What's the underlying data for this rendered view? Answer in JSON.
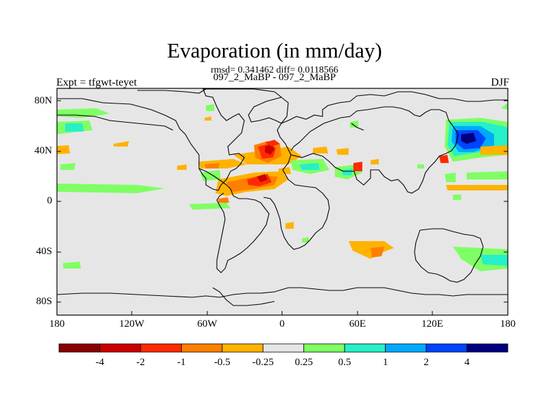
{
  "title": "Evaporation (in mm/day)",
  "stats_line": "rmsd= 0.341462 diff= 0.0118566",
  "subtitle": "097_2_MaBP - 097_2_MaBP",
  "left_label": "Expt = tfgwt-teyet",
  "right_label": "DJF",
  "y_ticks": [
    "80N",
    "40N",
    "0",
    "40S",
    "80S"
  ],
  "x_ticks": [
    "180",
    "120W",
    "60W",
    "0",
    "60E",
    "120E",
    "180"
  ],
  "colorbar": {
    "labels": [
      "-4",
      "-2",
      "-1",
      "-0.5",
      "-0.25",
      "0.25",
      "0.5",
      "1",
      "2",
      "4"
    ],
    "colors": [
      "#8b0000",
      "#cc0000",
      "#ff2a00",
      "#ff7f00",
      "#ffb300",
      "#e6e6e6",
      "#7fff64",
      "#25f0c8",
      "#00aaff",
      "#0044ff",
      "#00007f"
    ]
  },
  "map_background": "#e6e6e6"
}
